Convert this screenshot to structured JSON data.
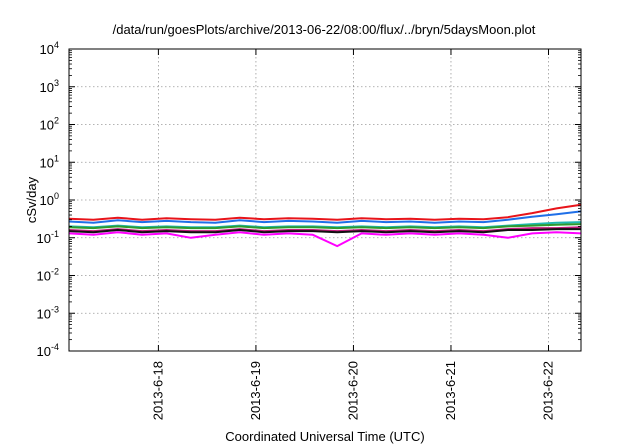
{
  "chart_data": {
    "type": "line",
    "title": "/data/run/goesPlots/archive/2013-06-22/08:00/flux/../bryn/5daysMoon.plot",
    "xlabel": "Coordinated Universal Time (UTC)",
    "ylabel": "cSv/day",
    "yscale": "log",
    "ylim": [
      0.0001,
      10000
    ],
    "xlim": [
      "2013-06-17 02:00",
      "2013-06-22 08:00"
    ],
    "grid": true,
    "y_ticks": [
      {
        "base": "10",
        "exp": "-4"
      },
      {
        "base": "10",
        "exp": "-3"
      },
      {
        "base": "10",
        "exp": "-2"
      },
      {
        "base": "10",
        "exp": "-1"
      },
      {
        "base": "10",
        "exp": "0"
      },
      {
        "base": "10",
        "exp": "1"
      },
      {
        "base": "10",
        "exp": "2"
      },
      {
        "base": "10",
        "exp": "3"
      },
      {
        "base": "10",
        "exp": "4"
      }
    ],
    "x_ticks": [
      {
        "label": "2013-6-18",
        "value": "2013-06-18 00:00"
      },
      {
        "label": "2013-6-19",
        "value": "2013-06-19 00:00"
      },
      {
        "label": "2013-6-20",
        "value": "2013-06-20 00:00"
      },
      {
        "label": "2013-6-21",
        "value": "2013-06-21 00:00"
      },
      {
        "label": "2013-6-22",
        "value": "2013-06-22 00:00"
      }
    ],
    "x": [
      "2013-06-17 02:00",
      "2013-06-17 08:00",
      "2013-06-17 14:00",
      "2013-06-17 20:00",
      "2013-06-18 02:00",
      "2013-06-18 08:00",
      "2013-06-18 14:00",
      "2013-06-18 20:00",
      "2013-06-19 02:00",
      "2013-06-19 08:00",
      "2013-06-19 14:00",
      "2013-06-19 20:00",
      "2013-06-20 02:00",
      "2013-06-20 08:00",
      "2013-06-20 14:00",
      "2013-06-20 20:00",
      "2013-06-21 02:00",
      "2013-06-21 08:00",
      "2013-06-21 14:00",
      "2013-06-21 20:00",
      "2013-06-22 02:00",
      "2013-06-22 08:00"
    ],
    "series": [
      {
        "color": "#e8141a",
        "values": [
          0.32,
          0.3,
          0.34,
          0.3,
          0.33,
          0.31,
          0.3,
          0.34,
          0.31,
          0.33,
          0.32,
          0.3,
          0.33,
          0.31,
          0.32,
          0.3,
          0.32,
          0.31,
          0.35,
          0.45,
          0.6,
          0.75
        ]
      },
      {
        "color": "#1f6fe8",
        "values": [
          0.27,
          0.25,
          0.29,
          0.26,
          0.28,
          0.26,
          0.25,
          0.29,
          0.26,
          0.28,
          0.27,
          0.25,
          0.28,
          0.26,
          0.27,
          0.25,
          0.27,
          0.26,
          0.3,
          0.36,
          0.42,
          0.5
        ]
      },
      {
        "color": "#20b8b0",
        "values": [
          0.2,
          0.19,
          0.21,
          0.19,
          0.2,
          0.19,
          0.19,
          0.21,
          0.19,
          0.2,
          0.2,
          0.19,
          0.2,
          0.19,
          0.2,
          0.19,
          0.2,
          0.19,
          0.21,
          0.23,
          0.25,
          0.26
        ]
      },
      {
        "color": "#2e9a2e",
        "values": [
          0.19,
          0.18,
          0.2,
          0.18,
          0.19,
          0.18,
          0.18,
          0.2,
          0.18,
          0.19,
          0.19,
          0.18,
          0.19,
          0.18,
          0.19,
          0.18,
          0.19,
          0.18,
          0.2,
          0.21,
          0.22,
          0.23
        ]
      },
      {
        "color": "#c21a7a",
        "values": [
          0.16,
          0.15,
          0.17,
          0.15,
          0.16,
          0.15,
          0.15,
          0.17,
          0.15,
          0.16,
          0.16,
          0.15,
          0.16,
          0.15,
          0.16,
          0.15,
          0.16,
          0.15,
          0.17,
          0.18,
          0.18,
          0.19
        ]
      },
      {
        "color": "#111111",
        "values": [
          0.15,
          0.14,
          0.16,
          0.14,
          0.15,
          0.14,
          0.14,
          0.16,
          0.14,
          0.15,
          0.15,
          0.14,
          0.15,
          0.14,
          0.15,
          0.14,
          0.15,
          0.14,
          0.16,
          0.16,
          0.17,
          0.17
        ]
      },
      {
        "color": "#ff00ff",
        "values": [
          0.13,
          0.12,
          0.14,
          0.12,
          0.13,
          0.1,
          0.12,
          0.14,
          0.12,
          0.13,
          0.12,
          0.06,
          0.13,
          0.12,
          0.13,
          0.12,
          0.13,
          0.12,
          0.1,
          0.13,
          0.14,
          0.13
        ]
      }
    ]
  }
}
